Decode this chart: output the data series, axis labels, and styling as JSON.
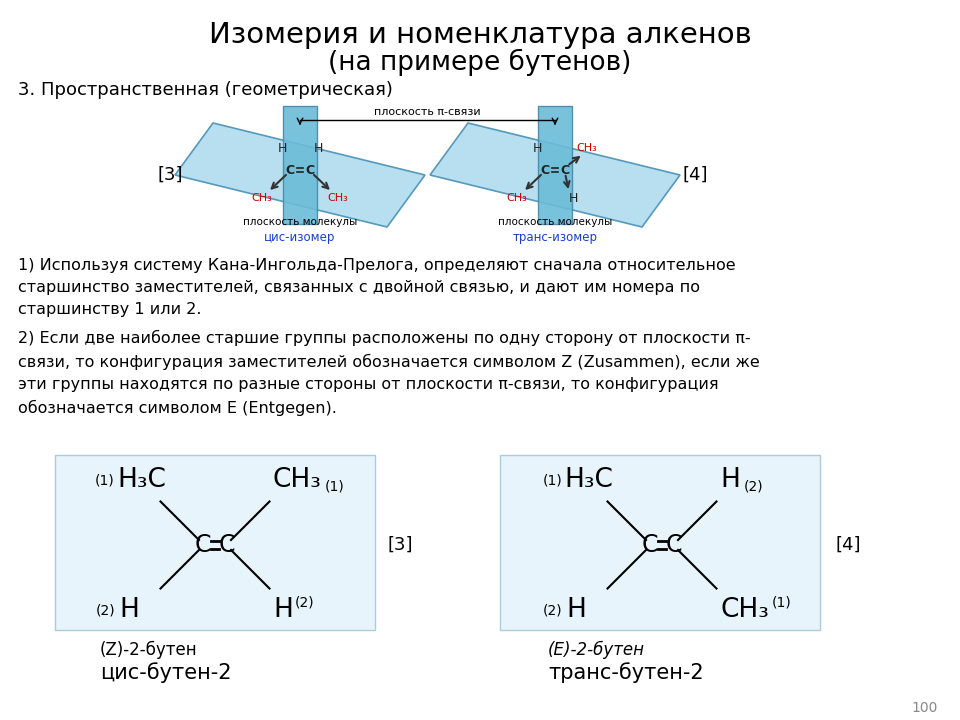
{
  "title_line1": "Изомерия и номенклатура алкенов",
  "title_line2": "(на примере бутенов)",
  "section_label": "3. Пространственная (геометрическая)",
  "pi_bond_label": "плоскость π-связи",
  "mol_plane_label": "плоскость молекулы",
  "cis_label": "цис-изомер",
  "trans_label": "транс-изомер",
  "bracket3": "[3]",
  "bracket4": "[4]",
  "text1": "1) Используя систему Кана-Ингольда-Прелога, определяют сначала относительное\nстаршинство заместителей, связанных с двойной связью, и дают им номера по\nстаршинству 1 или 2.",
  "text2": "2) Если две наиболее старшие группы расположены по одну сторону от плоскости π-\nсвязи, то конфигурация заместителей обозначается символом Z (Zusammen), если же\nэти группы находятся по разные стороны от плоскости π-связи, то конфигурация\nобозначается символом E (Entgegen).",
  "z_label": "(Z)-2-бутен",
  "cis_name": "цис-бутен-2",
  "e_label": "(E)-2-бутен",
  "trans_name": "транс-бутен-2",
  "page_num": "100",
  "bg_color": "#ffffff",
  "diagram_bg": "#b8dff0",
  "diagram_rect_bg": "#6bbcd8",
  "mol_bg_color": "#e8f4fb",
  "text_color": "#000000",
  "red_color": "#cc0000",
  "blue_label_color": "#1a3fcc",
  "gray_color": "#888888"
}
